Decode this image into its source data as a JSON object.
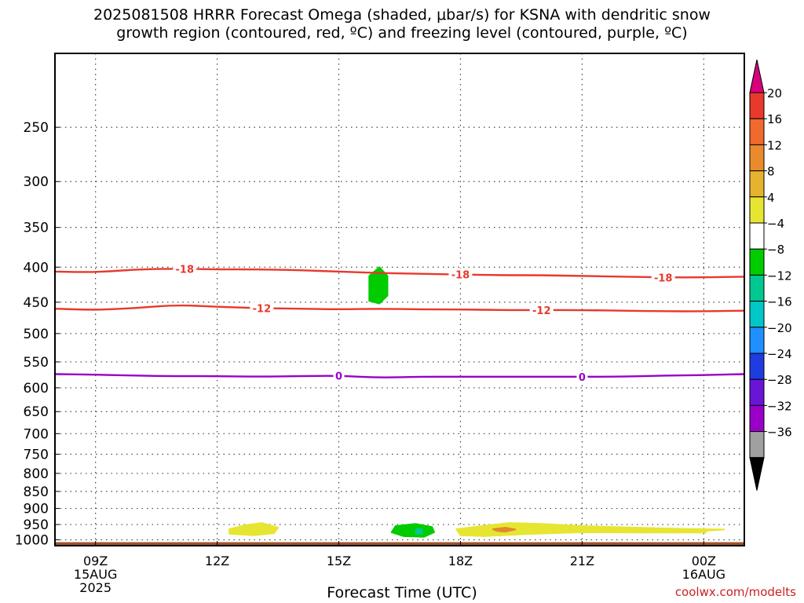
{
  "title": "2025081508 HRRR Forecast Omega (shaded, μbar/s) for KSNA with dendritic snow\ngrowth region (contoured, red, ºC) and freezing level (contoured, purple, ºC)",
  "credit": "coolwx.com/modelts",
  "chart_data": {
    "type": "time-height cross section",
    "title": "2025081508 HRRR Forecast Omega (shaded, μbar/s) for KSNA with dendritic snow growth region (contoured, red, ºC) and freezing level (contoured, purple, ºC)",
    "xlabel": "Forecast Time (UTC)",
    "ylabel": "",
    "x_axis": {
      "unit": "forecast hour",
      "range": [
        8,
        25
      ],
      "ticks": [
        {
          "hour": 9,
          "label": "09Z",
          "sub1": "15AUG",
          "sub2": "2025"
        },
        {
          "hour": 12,
          "label": "12Z",
          "sub1": "",
          "sub2": ""
        },
        {
          "hour": 15,
          "label": "15Z",
          "sub1": "",
          "sub2": ""
        },
        {
          "hour": 18,
          "label": "18Z",
          "sub1": "",
          "sub2": ""
        },
        {
          "hour": 21,
          "label": "21Z",
          "sub1": "",
          "sub2": ""
        },
        {
          "hour": 24,
          "label": "00Z",
          "sub1": "16AUG",
          "sub2": ""
        }
      ]
    },
    "y_axis": {
      "unit": "hPa",
      "scale": "log pressure (inverted)",
      "range": [
        1020,
        195
      ],
      "ticks": [
        250,
        300,
        350,
        400,
        450,
        500,
        550,
        600,
        650,
        700,
        750,
        800,
        850,
        900,
        950,
        1000
      ]
    },
    "grid": true,
    "surface_pressure_hpa": 1008,
    "surface_color": "#a0522d",
    "contours": [
      {
        "name": "-18",
        "color": "#e8392d",
        "label": "-18",
        "points": [
          [
            8,
            406
          ],
          [
            9,
            407
          ],
          [
            10,
            403
          ],
          [
            11,
            402
          ],
          [
            12,
            403
          ],
          [
            13,
            403
          ],
          [
            14,
            404
          ],
          [
            15,
            406
          ],
          [
            16,
            408
          ],
          [
            17,
            409
          ],
          [
            18,
            410
          ],
          [
            19,
            411
          ],
          [
            20,
            411
          ],
          [
            21,
            412
          ],
          [
            22,
            413
          ],
          [
            23,
            414
          ],
          [
            24,
            414
          ],
          [
            25,
            413
          ]
        ],
        "label_hours": [
          11.2,
          18.0,
          23.0
        ]
      },
      {
        "name": "-12",
        "color": "#e8392d",
        "label": "-12",
        "points": [
          [
            8,
            460
          ],
          [
            9,
            462
          ],
          [
            10,
            459
          ],
          [
            11,
            454
          ],
          [
            12,
            457
          ],
          [
            13,
            459
          ],
          [
            14,
            460
          ],
          [
            15,
            461
          ],
          [
            16,
            460
          ],
          [
            17,
            461
          ],
          [
            18,
            461
          ],
          [
            19,
            462
          ],
          [
            20,
            462
          ],
          [
            21,
            462
          ],
          [
            22,
            463
          ],
          [
            23,
            464
          ],
          [
            24,
            464
          ],
          [
            25,
            463
          ]
        ],
        "label_hours": [
          13.1,
          20.0
        ]
      },
      {
        "name": "0",
        "color": "#9a00c8",
        "label": "0",
        "points": [
          [
            8,
            573
          ],
          [
            9,
            574
          ],
          [
            10,
            576
          ],
          [
            11,
            577
          ],
          [
            12,
            577
          ],
          [
            13,
            578
          ],
          [
            14,
            577
          ],
          [
            15,
            576
          ],
          [
            16,
            580
          ],
          [
            17,
            578
          ],
          [
            18,
            578
          ],
          [
            19,
            578
          ],
          [
            20,
            578
          ],
          [
            21,
            578
          ],
          [
            22,
            578
          ],
          [
            23,
            576
          ],
          [
            24,
            575
          ],
          [
            25,
            573
          ]
        ],
        "label_hours": [
          15.0,
          21.0
        ]
      }
    ],
    "omega_areas": [
      {
        "value": -6,
        "color": "#00cc00",
        "points": [
          [
            16.0,
            400
          ],
          [
            16.2,
            412
          ],
          [
            16.2,
            440
          ],
          [
            16.0,
            452
          ],
          [
            15.75,
            448
          ],
          [
            15.75,
            412
          ]
        ]
      },
      {
        "value": -6,
        "color": "#00cc00",
        "points": [
          [
            16.4,
            955
          ],
          [
            16.9,
            948
          ],
          [
            17.3,
            958
          ],
          [
            17.35,
            975
          ],
          [
            17.1,
            990
          ],
          [
            16.6,
            988
          ],
          [
            16.3,
            975
          ]
        ]
      },
      {
        "value": -10,
        "color": "#00c890",
        "points": [
          [
            16.9,
            965
          ],
          [
            17.05,
            965
          ],
          [
            17.05,
            980
          ],
          [
            16.9,
            980
          ]
        ]
      },
      {
        "value": 6,
        "color": "#e6e632",
        "points": [
          [
            12.3,
            965
          ],
          [
            12.7,
            952
          ],
          [
            13.1,
            945
          ],
          [
            13.5,
            960
          ],
          [
            13.4,
            978
          ],
          [
            12.9,
            985
          ],
          [
            12.3,
            980
          ]
        ]
      },
      {
        "value": 6,
        "color": "#e6e632",
        "points": [
          [
            17.9,
            965
          ],
          [
            18.4,
            957
          ],
          [
            19.2,
            945
          ],
          [
            20.0,
            948
          ],
          [
            21.0,
            955
          ],
          [
            22.3,
            960
          ],
          [
            23.5,
            964
          ],
          [
            24.5,
            966
          ],
          [
            24.05,
            970
          ],
          [
            24.05,
            976
          ],
          [
            22.5,
            976
          ],
          [
            21.0,
            975
          ],
          [
            19.6,
            981
          ],
          [
            18.6,
            988
          ],
          [
            18.0,
            985
          ]
        ]
      },
      {
        "value": 10,
        "color": "#e08a2e",
        "points": [
          [
            18.8,
            965
          ],
          [
            19.1,
            960
          ],
          [
            19.35,
            966
          ],
          [
            19.1,
            973
          ],
          [
            18.9,
            971
          ]
        ]
      }
    ],
    "colorbar": {
      "unit": "μbar/s",
      "boundaries": [
        20,
        16,
        12,
        8,
        4,
        -4,
        -8,
        -12,
        -16,
        -20,
        -24,
        -28,
        -32,
        -36
      ],
      "labels": [
        "20",
        "16",
        "12",
        "8",
        "4",
        "−4",
        "−8",
        "−12",
        "−16",
        "−20",
        "−24",
        "−28",
        "−32",
        "−36"
      ],
      "colors": [
        "#e8392d",
        "#ef6a2c",
        "#e98a2c",
        "#e4b42e",
        "#e6e632",
        "#ffffff",
        "#00cc00",
        "#00c890",
        "#00c8c8",
        "#1e90ff",
        "#1e3ce0",
        "#6a14d8",
        "#9a00c8",
        "#a0a0a0"
      ],
      "top_arrow_color": "#d8007a",
      "bottom_arrow_color": "#000000"
    }
  }
}
